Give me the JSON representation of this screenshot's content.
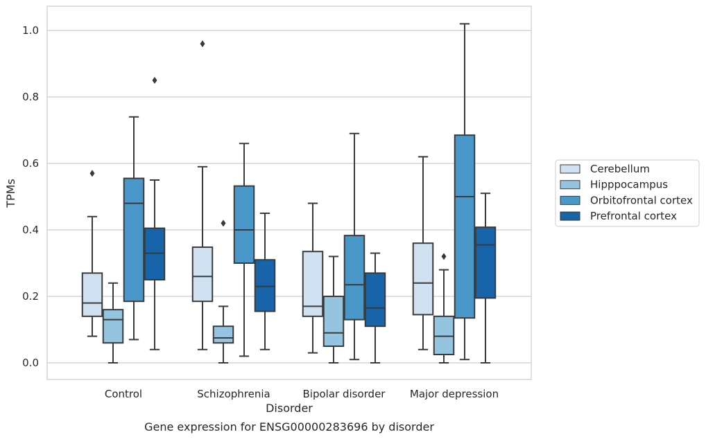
{
  "chart_data": {
    "type": "box",
    "title": "",
    "caption": "Gene expression for ENSG00000283696 by disorder",
    "xlabel": "Disorder",
    "ylabel": "TPMs",
    "ylim": [
      -0.05,
      1.07
    ],
    "yticks": [
      0.0,
      0.2,
      0.4,
      0.6,
      0.8,
      1.0
    ],
    "ytick_labels": [
      "0.0",
      "0.2",
      "0.4",
      "0.6",
      "0.8",
      "1.0"
    ],
    "grid": "horizontal",
    "legend_position": "right",
    "categories": [
      "Control",
      "Schizophrenia",
      "Bipolar disorder",
      "Major depression"
    ],
    "series": [
      {
        "name": "Cerebellum",
        "color": "#d0e1f2",
        "boxes": [
          {
            "whislo": 0.08,
            "q1": 0.14,
            "med": 0.18,
            "q3": 0.27,
            "whishi": 0.44,
            "fliers": [
              0.57
            ]
          },
          {
            "whislo": 0.04,
            "q1": 0.185,
            "med": 0.26,
            "q3": 0.348,
            "whishi": 0.59,
            "fliers": [
              0.96
            ]
          },
          {
            "whislo": 0.03,
            "q1": 0.14,
            "med": 0.17,
            "q3": 0.335,
            "whishi": 0.48,
            "fliers": []
          },
          {
            "whislo": 0.04,
            "q1": 0.145,
            "med": 0.24,
            "q3": 0.36,
            "whishi": 0.62,
            "fliers": []
          }
        ]
      },
      {
        "name": "Hipppocampus",
        "color": "#94c4df",
        "boxes": [
          {
            "whislo": 0.0,
            "q1": 0.06,
            "med": 0.13,
            "q3": 0.16,
            "whishi": 0.24,
            "fliers": []
          },
          {
            "whislo": 0.0,
            "q1": 0.06,
            "med": 0.075,
            "q3": 0.11,
            "whishi": 0.17,
            "fliers": [
              0.42
            ]
          },
          {
            "whislo": 0.0,
            "q1": 0.05,
            "med": 0.09,
            "q3": 0.2,
            "whishi": 0.32,
            "fliers": []
          },
          {
            "whislo": 0.0,
            "q1": 0.025,
            "med": 0.08,
            "q3": 0.14,
            "whishi": 0.28,
            "fliers": [
              0.32
            ]
          }
        ]
      },
      {
        "name": "Orbitofrontal cortex",
        "color": "#4a98c9",
        "boxes": [
          {
            "whislo": 0.07,
            "q1": 0.185,
            "med": 0.48,
            "q3": 0.555,
            "whishi": 0.74,
            "fliers": []
          },
          {
            "whislo": 0.02,
            "q1": 0.3,
            "med": 0.4,
            "q3": 0.532,
            "whishi": 0.66,
            "fliers": []
          },
          {
            "whislo": 0.01,
            "q1": 0.13,
            "med": 0.235,
            "q3": 0.383,
            "whishi": 0.69,
            "fliers": []
          },
          {
            "whislo": 0.01,
            "q1": 0.135,
            "med": 0.5,
            "q3": 0.685,
            "whishi": 1.02,
            "fliers": []
          }
        ]
      },
      {
        "name": "Prefrontal cortex",
        "color": "#1764ab",
        "boxes": [
          {
            "whislo": 0.04,
            "q1": 0.25,
            "med": 0.33,
            "q3": 0.405,
            "whishi": 0.55,
            "fliers": [
              0.85
            ]
          },
          {
            "whislo": 0.04,
            "q1": 0.155,
            "med": 0.23,
            "q3": 0.31,
            "whishi": 0.45,
            "fliers": []
          },
          {
            "whislo": 0.0,
            "q1": 0.11,
            "med": 0.165,
            "q3": 0.27,
            "whishi": 0.33,
            "fliers": []
          },
          {
            "whislo": 0.0,
            "q1": 0.195,
            "med": 0.355,
            "q3": 0.408,
            "whishi": 0.51,
            "fliers": []
          }
        ]
      }
    ]
  }
}
